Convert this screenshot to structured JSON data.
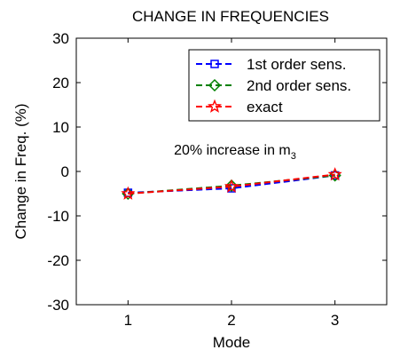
{
  "chart_data": {
    "type": "line",
    "title": "CHANGE IN FREQUENCIES",
    "xlabel": "Mode",
    "ylabel": "Change in Freq. (%)",
    "x": [
      1,
      2,
      3
    ],
    "xlim": [
      0.5,
      3.5
    ],
    "ylim": [
      -30,
      30
    ],
    "xticks": [
      1,
      2,
      3
    ],
    "yticks": [
      30,
      20,
      10,
      0,
      -10,
      -20,
      -30
    ],
    "grid": false,
    "legend_position": "top-right",
    "annotation": {
      "prefix": "20% increase in m",
      "subscript": "3"
    },
    "series": [
      {
        "name": "1st order sens.",
        "values": [
          -4.8,
          -3.8,
          -0.9
        ],
        "color": "#0000ff",
        "marker": "square"
      },
      {
        "name": "2nd order sens.",
        "values": [
          -5.0,
          -3.2,
          -0.9
        ],
        "color": "#008000",
        "marker": "diamond"
      },
      {
        "name": "exact",
        "values": [
          -5.0,
          -3.4,
          -0.7
        ],
        "color": "#ff0000",
        "marker": "star"
      }
    ]
  }
}
